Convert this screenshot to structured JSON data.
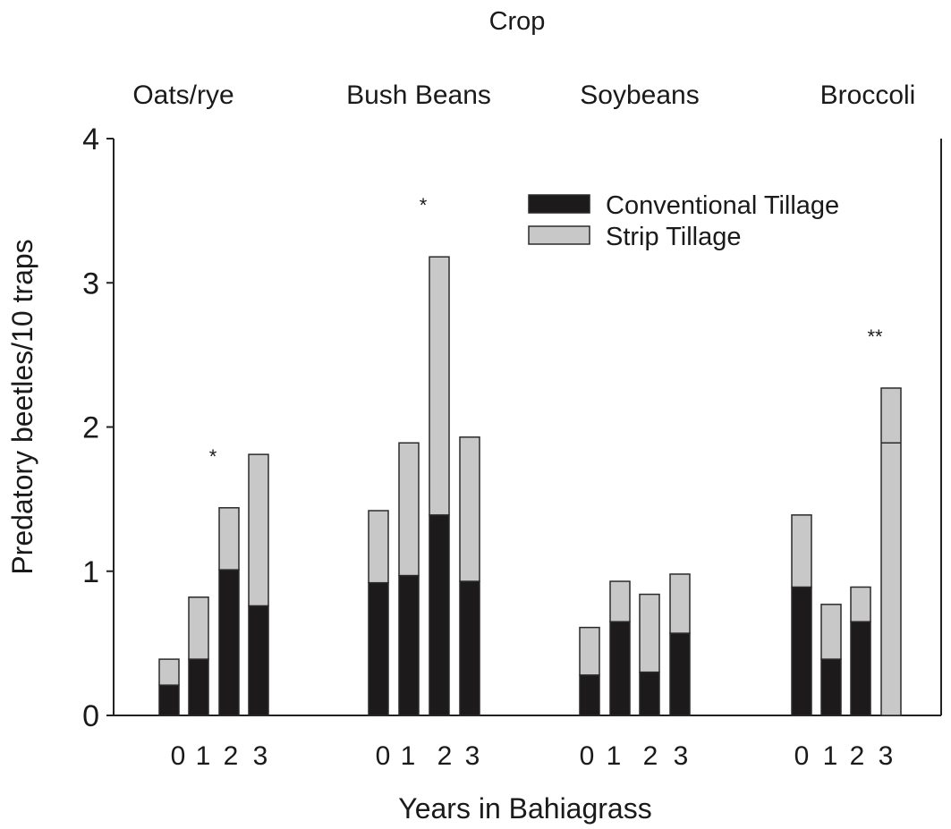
{
  "chart_data": {
    "type": "bar",
    "stacked": true,
    "title": "Crop",
    "xlabel": "Years in Bahiagrass",
    "ylabel": "Predatory beetles/10 traps",
    "ylim": [
      0,
      4
    ],
    "yticks": [
      "0",
      "1",
      "2",
      "3",
      "4"
    ],
    "grid": false,
    "legend_position": "top-right",
    "colors": {
      "conventional": "#1c1a1b",
      "strip": "#c8c8c8",
      "outline": "#2a2a2a"
    },
    "groups": [
      {
        "name": "Oats/rye",
        "categories": [
          "0",
          "1",
          "2",
          "3"
        ],
        "conventional": [
          0.21,
          0.39,
          1.01,
          0.76
        ],
        "strip": [
          0.18,
          0.43,
          0.43,
          1.05
        ],
        "asterisks": [
          "",
          "",
          "*",
          ""
        ]
      },
      {
        "name": "Bush Beans",
        "categories": [
          "0",
          "1",
          "2",
          "3"
        ],
        "conventional": [
          0.92,
          0.97,
          1.39,
          0.93
        ],
        "strip": [
          0.5,
          0.92,
          1.79,
          1.0
        ],
        "asterisks": [
          "",
          "",
          "*",
          ""
        ]
      },
      {
        "name": "Soybeans",
        "categories": [
          "0",
          "1",
          "2",
          "3"
        ],
        "conventional": [
          0.28,
          0.65,
          0.3,
          0.57
        ],
        "strip": [
          0.33,
          0.28,
          0.54,
          0.41
        ],
        "asterisks": [
          "",
          "",
          "",
          ""
        ]
      },
      {
        "name": "Broccoli",
        "categories": [
          "0",
          "1",
          "2",
          "3"
        ],
        "conventional": [
          0.89,
          0.39,
          0.65,
          0.0
        ],
        "strip": [
          0.5,
          0.38,
          0.24,
          2.27
        ],
        "internal_line": [
          null,
          null,
          null,
          1.89
        ],
        "asterisks": [
          "",
          "",
          "",
          "**"
        ]
      }
    ],
    "series": [
      {
        "name": "Conventional Tillage",
        "key": "conventional"
      },
      {
        "name": "Strip Tillage",
        "key": "strip"
      }
    ]
  }
}
